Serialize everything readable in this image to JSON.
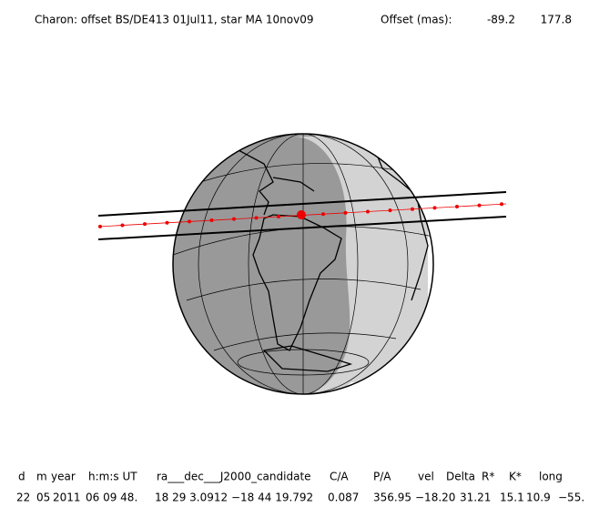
{
  "header": {
    "title": "Charon: offset BS/DE413 01Jul11, star MA 10nov09",
    "offset_label": "Offset (mas):",
    "offset": [
      "-89.2",
      "177.8"
    ]
  },
  "table": {
    "columns": [
      "d",
      "m",
      "year",
      "h:m:s UT",
      "ra___dec___J2000_candidate",
      "C/A",
      "P/A",
      "vel",
      "Delta",
      "R*",
      "K*",
      "long"
    ],
    "rows": [
      [
        "22",
        "05",
        "2011",
        "06 09 48.",
        "18 29  3.0912 −18 44  19.792",
        "0.087",
        "356.95",
        "−18.20",
        "31.21",
        "15.1",
        "10.9",
        "−55."
      ]
    ]
  }
}
